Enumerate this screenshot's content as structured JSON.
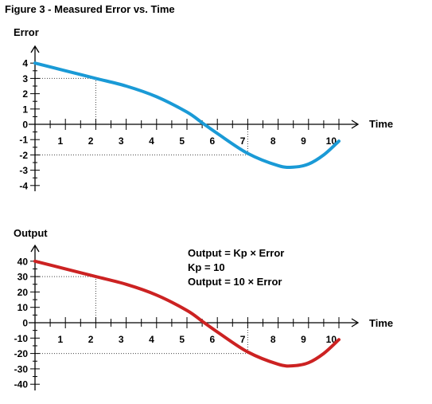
{
  "figure_title": "Figure 3 - Measured Error vs. Time",
  "colors": {
    "error_curve": "#1a9ad6",
    "output_curve": "#cc2222",
    "axis": "#000000",
    "guide": "#444444"
  },
  "chart_data": [
    {
      "type": "line",
      "title": "",
      "ylabel": "Error",
      "xlabel": "Time",
      "xlim": [
        0,
        10
      ],
      "ylim": [
        -4,
        4
      ],
      "xticks": [
        1,
        2,
        3,
        4,
        5,
        6,
        7,
        8,
        9,
        10
      ],
      "yticks": [
        4,
        3,
        2,
        1,
        0,
        -1,
        -2,
        -3,
        -4
      ],
      "grid": false,
      "series": [
        {
          "name": "",
          "color": "#1a9ad6",
          "x": [
            0,
            1,
            2,
            3,
            4,
            5,
            5.5,
            6,
            7,
            8,
            8.5,
            9,
            9.5,
            10
          ],
          "y": [
            4,
            3.5,
            3,
            2.5,
            1.8,
            0.8,
            0.1,
            -0.6,
            -1.9,
            -2.7,
            -2.8,
            -2.6,
            -2.0,
            -1.1
          ]
        }
      ],
      "annotations": [
        {
          "x": 2,
          "y": 3,
          "type": "guide"
        },
        {
          "x": 7,
          "y": -2,
          "type": "guide"
        }
      ]
    },
    {
      "type": "line",
      "title": "",
      "ylabel": "Output",
      "xlabel": "Time",
      "xlim": [
        0,
        10
      ],
      "ylim": [
        -40,
        40
      ],
      "xticks": [
        1,
        2,
        3,
        4,
        5,
        6,
        7,
        8,
        9,
        10
      ],
      "yticks": [
        40,
        30,
        20,
        10,
        0,
        -10,
        -20,
        -30,
        -40
      ],
      "grid": false,
      "series": [
        {
          "name": "",
          "color": "#cc2222",
          "x": [
            0,
            1,
            2,
            3,
            4,
            5,
            5.5,
            6,
            7,
            8,
            8.5,
            9,
            9.5,
            10
          ],
          "y": [
            40,
            35,
            30,
            25,
            18,
            8,
            1,
            -6,
            -19,
            -27,
            -28,
            -26,
            -20,
            -11
          ]
        }
      ],
      "annotations": [
        {
          "x": 2,
          "y": 30,
          "type": "guide"
        },
        {
          "x": 7,
          "y": -20,
          "type": "guide"
        }
      ],
      "equations": [
        "Output = Kp × Error",
        "Kp = 10",
        "Output = 10 × Error"
      ]
    }
  ]
}
